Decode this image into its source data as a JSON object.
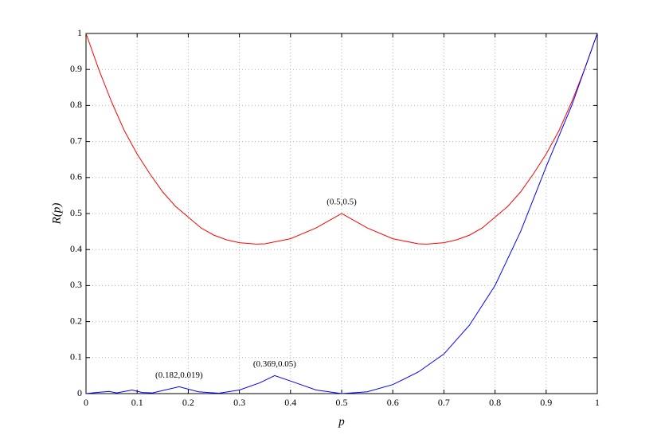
{
  "chart_data": {
    "type": "line",
    "xlabel": "p",
    "ylabel": "R(p)",
    "xlim": [
      0,
      1
    ],
    "ylim": [
      0,
      1
    ],
    "xticks": [
      0,
      0.1,
      0.2,
      0.3,
      0.4,
      0.5,
      0.6,
      0.7,
      0.8,
      0.9,
      1
    ],
    "yticks": [
      0,
      0.1,
      0.2,
      0.3,
      0.4,
      0.5,
      0.6,
      0.7,
      0.8,
      0.9,
      1
    ],
    "grid": true,
    "series": [
      {
        "color": "#ff0000",
        "x": [
          0,
          0.025,
          0.05,
          0.075,
          0.1,
          0.125,
          0.15,
          0.175,
          0.2,
          0.225,
          0.25,
          0.275,
          0.3,
          0.333,
          0.35,
          0.4,
          0.45,
          0.5,
          0.55,
          0.6,
          0.65,
          0.667,
          0.7,
          0.725,
          0.75,
          0.775,
          0.8,
          0.825,
          0.85,
          0.875,
          0.9,
          0.925,
          0.95,
          0.975,
          1
        ],
        "values": [
          1,
          0.9,
          0.81,
          0.73,
          0.665,
          0.61,
          0.56,
          0.52,
          0.49,
          0.46,
          0.44,
          0.427,
          0.419,
          0.415,
          0.416,
          0.43,
          0.46,
          0.5,
          0.46,
          0.43,
          0.416,
          0.415,
          0.419,
          0.427,
          0.44,
          0.46,
          0.49,
          0.52,
          0.56,
          0.61,
          0.665,
          0.73,
          0.81,
          0.9,
          1
        ]
      },
      {
        "color": "#0000ff",
        "x": [
          0,
          0.02,
          0.045,
          0.06,
          0.09,
          0.11,
          0.13,
          0.182,
          0.22,
          0.26,
          0.3,
          0.34,
          0.369,
          0.4,
          0.45,
          0.5,
          0.55,
          0.6,
          0.65,
          0.7,
          0.75,
          0.8,
          0.85,
          0.9,
          0.95,
          1
        ],
        "values": [
          0,
          0.003,
          0.006,
          0.002,
          0.01,
          0.003,
          0.002,
          0.019,
          0.005,
          0.001,
          0.01,
          0.03,
          0.05,
          0.035,
          0.01,
          0,
          0.005,
          0.025,
          0.06,
          0.11,
          0.19,
          0.3,
          0.45,
          0.63,
          0.8,
          1
        ]
      }
    ],
    "annotations": [
      {
        "text": "(0.182,0.019)",
        "x": 0.182,
        "y": 0.019
      },
      {
        "text": "(0.369,0.05)",
        "x": 0.369,
        "y": 0.05
      },
      {
        "text": "(0.5,0.5)",
        "x": 0.5,
        "y": 0.5
      }
    ]
  }
}
